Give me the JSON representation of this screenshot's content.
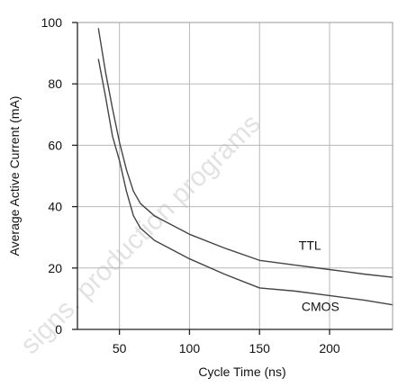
{
  "chart_data": {
    "type": "line",
    "title": "",
    "xlabel": "Cycle Time (ns)",
    "ylabel": "Average Active Current (mA)",
    "xlim": [
      20,
      245
    ],
    "ylim": [
      0,
      100
    ],
    "x_ticks": [
      50,
      100,
      150,
      200
    ],
    "x_tick_labels": [
      "50",
      "100",
      "150",
      "200"
    ],
    "y_ticks": [
      0,
      20,
      40,
      60,
      80,
      100
    ],
    "y_tick_labels": [
      "0",
      "20",
      "40",
      "60",
      "80",
      "100"
    ],
    "x_gridlines": [
      50,
      100,
      150,
      200
    ],
    "y_gridlines": [
      20,
      40,
      60,
      80
    ],
    "grid": true,
    "legend": "none",
    "series": [
      {
        "name": "TTL",
        "color": "#444444",
        "x": [
          35,
          40,
          45,
          50,
          55,
          60,
          65,
          75,
          100,
          125,
          150,
          175,
          200,
          225,
          245
        ],
        "y": [
          98,
          84,
          72,
          61,
          52,
          45,
          41,
          37,
          31,
          26.5,
          22.5,
          21,
          19.5,
          18,
          17
        ]
      },
      {
        "name": "CMOS",
        "color": "#444444",
        "x": [
          35,
          40,
          45,
          50,
          55,
          60,
          65,
          75,
          100,
          125,
          150,
          175,
          200,
          225,
          245
        ],
        "y": [
          88,
          76,
          63,
          55,
          45,
          37,
          33,
          29,
          23,
          18,
          13.5,
          12.5,
          11,
          9.5,
          8
        ]
      }
    ],
    "annotations": [
      {
        "text": "TTL",
        "x": 178,
        "y": 26
      },
      {
        "text": "CMOS",
        "x": 180,
        "y": 6
      }
    ]
  },
  "watermark": {
    "text": "signs. production programs",
    "color": "#9a9a9a"
  }
}
